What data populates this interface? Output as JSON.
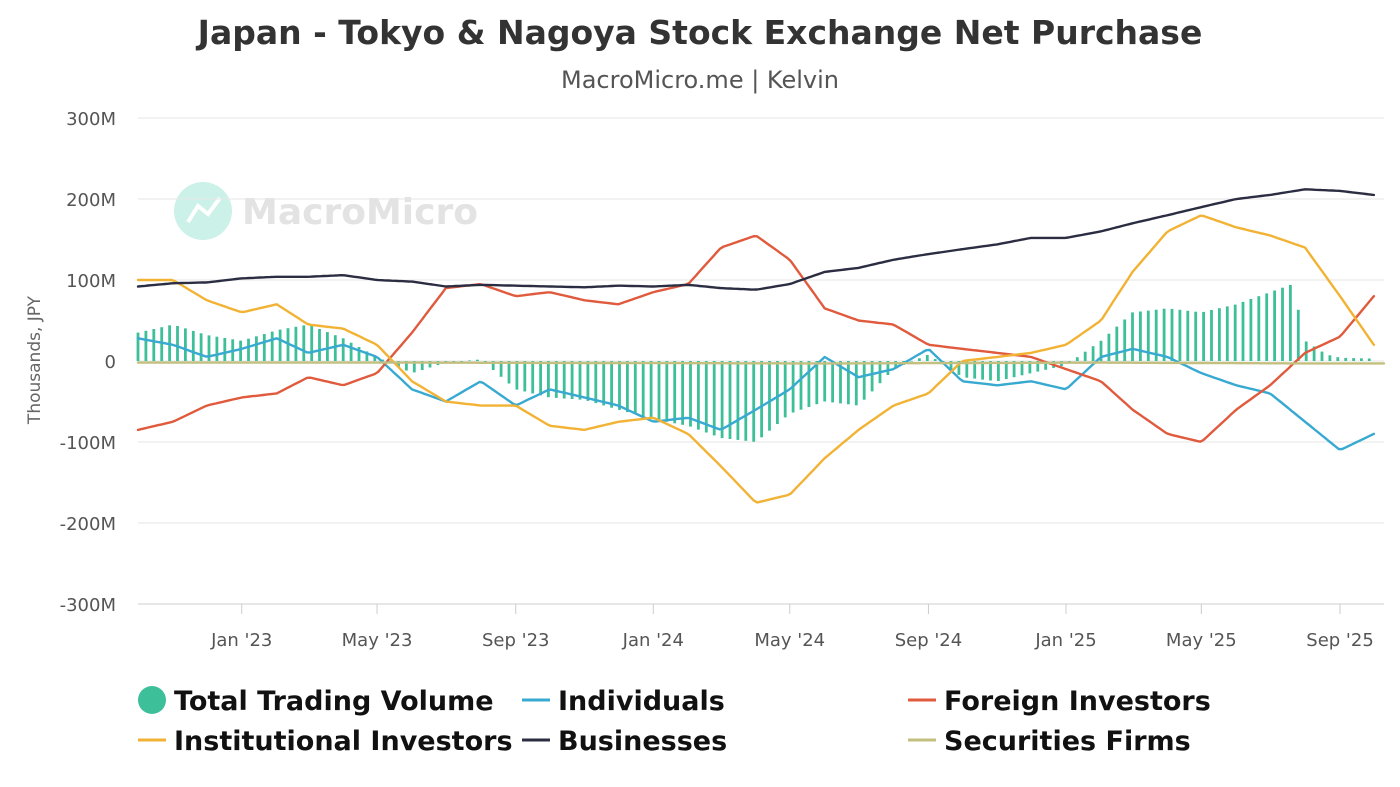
{
  "chart_data": {
    "type": "line",
    "title": "Japan - Tokyo & Nagoya Stock Exchange Net Purchase",
    "subtitle": "MacroMicro.me | Kelvin",
    "watermark": "MacroMicro",
    "ylabel": "Thousands, JPY",
    "ylim": [
      -300,
      300
    ],
    "y_ticks": [
      {
        "value": 300,
        "label": "300M"
      },
      {
        "value": 200,
        "label": "200M"
      },
      {
        "value": 100,
        "label": "100M"
      },
      {
        "value": 0,
        "label": "0"
      },
      {
        "value": -100,
        "label": "-100M"
      },
      {
        "value": -200,
        "label": "-200M"
      },
      {
        "value": -300,
        "label": "-300M"
      }
    ],
    "x_range": [
      "2022-10-01",
      "2025-10-10"
    ],
    "x_ticks": [
      {
        "date": "2023-01-01",
        "label": "Jan '23"
      },
      {
        "date": "2023-05-01",
        "label": "May '23"
      },
      {
        "date": "2023-09-01",
        "label": "Sep '23"
      },
      {
        "date": "2024-01-01",
        "label": "Jan '24"
      },
      {
        "date": "2024-05-01",
        "label": "May '24"
      },
      {
        "date": "2024-09-01",
        "label": "Sep '24"
      },
      {
        "date": "2025-01-01",
        "label": "Jan '25"
      },
      {
        "date": "2025-05-01",
        "label": "May '25"
      },
      {
        "date": "2025-09-01",
        "label": "Sep '25"
      }
    ],
    "series": [
      {
        "name": "Total Trading Volume",
        "kind": "bar",
        "color": "#3dbf99",
        "data": [
          [
            "2022-10-01",
            35
          ],
          [
            "2022-11-01",
            45
          ],
          [
            "2022-12-01",
            32
          ],
          [
            "2023-01-01",
            25
          ],
          [
            "2023-02-01",
            38
          ],
          [
            "2023-03-01",
            45
          ],
          [
            "2023-04-01",
            28
          ],
          [
            "2023-05-01",
            5
          ],
          [
            "2023-06-01",
            -15
          ],
          [
            "2023-07-01",
            -2
          ],
          [
            "2023-08-01",
            2
          ],
          [
            "2023-09-01",
            -35
          ],
          [
            "2023-10-01",
            -45
          ],
          [
            "2023-11-01",
            -48
          ],
          [
            "2023-12-01",
            -60
          ],
          [
            "2024-01-01",
            -72
          ],
          [
            "2024-02-01",
            -80
          ],
          [
            "2024-03-01",
            -95
          ],
          [
            "2024-04-01",
            -100
          ],
          [
            "2024-05-01",
            -65
          ],
          [
            "2024-06-01",
            -50
          ],
          [
            "2024-07-01",
            -55
          ],
          [
            "2024-08-01",
            -10
          ],
          [
            "2024-09-01",
            8
          ],
          [
            "2024-10-01",
            -20
          ],
          [
            "2024-11-01",
            -25
          ],
          [
            "2024-12-01",
            -15
          ],
          [
            "2025-01-01",
            -5
          ],
          [
            "2025-02-01",
            25
          ],
          [
            "2025-03-01",
            60
          ],
          [
            "2025-04-01",
            65
          ],
          [
            "2025-05-01",
            60
          ],
          [
            "2025-06-01",
            70
          ],
          [
            "2025-07-01",
            85
          ],
          [
            "2025-07-21",
            95
          ],
          [
            "2025-08-01",
            25
          ],
          [
            "2025-08-20",
            8
          ],
          [
            "2025-09-01",
            4
          ],
          [
            "2025-10-01",
            3
          ]
        ]
      },
      {
        "name": "Individuals",
        "kind": "line",
        "color": "#38a9d1",
        "data": [
          [
            "2022-10-01",
            28
          ],
          [
            "2022-11-01",
            20
          ],
          [
            "2022-12-01",
            5
          ],
          [
            "2023-01-01",
            15
          ],
          [
            "2023-02-01",
            28
          ],
          [
            "2023-03-01",
            10
          ],
          [
            "2023-04-01",
            20
          ],
          [
            "2023-05-01",
            5
          ],
          [
            "2023-06-01",
            -35
          ],
          [
            "2023-07-01",
            -50
          ],
          [
            "2023-08-01",
            -25
          ],
          [
            "2023-09-01",
            -55
          ],
          [
            "2023-10-01",
            -35
          ],
          [
            "2023-11-01",
            -45
          ],
          [
            "2023-12-01",
            -55
          ],
          [
            "2024-01-01",
            -75
          ],
          [
            "2024-02-01",
            -70
          ],
          [
            "2024-03-01",
            -85
          ],
          [
            "2024-04-01",
            -60
          ],
          [
            "2024-05-01",
            -35
          ],
          [
            "2024-06-01",
            5
          ],
          [
            "2024-07-01",
            -20
          ],
          [
            "2024-08-01",
            -10
          ],
          [
            "2024-09-01",
            15
          ],
          [
            "2024-10-01",
            -25
          ],
          [
            "2024-11-01",
            -30
          ],
          [
            "2024-12-01",
            -25
          ],
          [
            "2025-01-01",
            -35
          ],
          [
            "2025-02-01",
            5
          ],
          [
            "2025-03-01",
            15
          ],
          [
            "2025-04-01",
            5
          ],
          [
            "2025-05-01",
            -15
          ],
          [
            "2025-06-01",
            -30
          ],
          [
            "2025-07-01",
            -40
          ],
          [
            "2025-08-01",
            -75
          ],
          [
            "2025-09-01",
            -110
          ],
          [
            "2025-10-01",
            -90
          ]
        ]
      },
      {
        "name": "Foreign Investors",
        "kind": "line",
        "color": "#e05a3d",
        "data": [
          [
            "2022-10-01",
            -85
          ],
          [
            "2022-11-01",
            -75
          ],
          [
            "2022-12-01",
            -55
          ],
          [
            "2023-01-01",
            -45
          ],
          [
            "2023-02-01",
            -40
          ],
          [
            "2023-03-01",
            -20
          ],
          [
            "2023-04-01",
            -30
          ],
          [
            "2023-05-01",
            -15
          ],
          [
            "2023-06-01",
            35
          ],
          [
            "2023-07-01",
            90
          ],
          [
            "2023-08-01",
            95
          ],
          [
            "2023-09-01",
            80
          ],
          [
            "2023-10-01",
            85
          ],
          [
            "2023-11-01",
            75
          ],
          [
            "2023-12-01",
            70
          ],
          [
            "2024-01-01",
            85
          ],
          [
            "2024-02-01",
            95
          ],
          [
            "2024-03-01",
            140
          ],
          [
            "2024-04-01",
            155
          ],
          [
            "2024-05-01",
            125
          ],
          [
            "2024-06-01",
            65
          ],
          [
            "2024-07-01",
            50
          ],
          [
            "2024-08-01",
            45
          ],
          [
            "2024-09-01",
            20
          ],
          [
            "2024-10-01",
            15
          ],
          [
            "2024-11-01",
            10
          ],
          [
            "2024-12-01",
            5
          ],
          [
            "2025-01-01",
            -10
          ],
          [
            "2025-02-01",
            -25
          ],
          [
            "2025-03-01",
            -60
          ],
          [
            "2025-04-01",
            -90
          ],
          [
            "2025-05-01",
            -100
          ],
          [
            "2025-06-01",
            -60
          ],
          [
            "2025-07-01",
            -30
          ],
          [
            "2025-08-01",
            10
          ],
          [
            "2025-09-01",
            30
          ],
          [
            "2025-10-01",
            80
          ]
        ]
      },
      {
        "name": "Institutional Investors",
        "kind": "line",
        "color": "#f2b234",
        "data": [
          [
            "2022-10-01",
            100
          ],
          [
            "2022-11-01",
            100
          ],
          [
            "2022-12-01",
            75
          ],
          [
            "2023-01-01",
            60
          ],
          [
            "2023-02-01",
            70
          ],
          [
            "2023-03-01",
            45
          ],
          [
            "2023-04-01",
            40
          ],
          [
            "2023-05-01",
            20
          ],
          [
            "2023-06-01",
            -25
          ],
          [
            "2023-07-01",
            -50
          ],
          [
            "2023-08-01",
            -55
          ],
          [
            "2023-09-01",
            -55
          ],
          [
            "2023-10-01",
            -80
          ],
          [
            "2023-11-01",
            -85
          ],
          [
            "2023-12-01",
            -75
          ],
          [
            "2024-01-01",
            -70
          ],
          [
            "2024-02-01",
            -90
          ],
          [
            "2024-03-01",
            -130
          ],
          [
            "2024-04-01",
            -175
          ],
          [
            "2024-05-01",
            -165
          ],
          [
            "2024-06-01",
            -120
          ],
          [
            "2024-07-01",
            -85
          ],
          [
            "2024-08-01",
            -55
          ],
          [
            "2024-09-01",
            -40
          ],
          [
            "2024-10-01",
            0
          ],
          [
            "2024-11-01",
            5
          ],
          [
            "2024-12-01",
            10
          ],
          [
            "2025-01-01",
            20
          ],
          [
            "2025-02-01",
            50
          ],
          [
            "2025-03-01",
            110
          ],
          [
            "2025-04-01",
            160
          ],
          [
            "2025-05-01",
            180
          ],
          [
            "2025-06-01",
            165
          ],
          [
            "2025-07-01",
            155
          ],
          [
            "2025-08-01",
            140
          ],
          [
            "2025-09-01",
            80
          ],
          [
            "2025-10-01",
            20
          ]
        ]
      },
      {
        "name": "Businesses",
        "kind": "line",
        "color": "#2b2d42",
        "data": [
          [
            "2022-10-01",
            92
          ],
          [
            "2022-11-01",
            96
          ],
          [
            "2022-12-01",
            97
          ],
          [
            "2023-01-01",
            102
          ],
          [
            "2023-02-01",
            104
          ],
          [
            "2023-03-01",
            104
          ],
          [
            "2023-04-01",
            106
          ],
          [
            "2023-05-01",
            100
          ],
          [
            "2023-06-01",
            98
          ],
          [
            "2023-07-01",
            92
          ],
          [
            "2023-08-01",
            94
          ],
          [
            "2023-09-01",
            93
          ],
          [
            "2023-10-01",
            92
          ],
          [
            "2023-11-01",
            91
          ],
          [
            "2023-12-01",
            93
          ],
          [
            "2024-01-01",
            92
          ],
          [
            "2024-02-01",
            94
          ],
          [
            "2024-03-01",
            90
          ],
          [
            "2024-04-01",
            88
          ],
          [
            "2024-05-01",
            95
          ],
          [
            "2024-06-01",
            110
          ],
          [
            "2024-07-01",
            115
          ],
          [
            "2024-08-01",
            125
          ],
          [
            "2024-09-01",
            132
          ],
          [
            "2024-10-01",
            138
          ],
          [
            "2024-11-01",
            144
          ],
          [
            "2024-12-01",
            152
          ],
          [
            "2025-01-01",
            152
          ],
          [
            "2025-02-01",
            160
          ],
          [
            "2025-03-01",
            170
          ],
          [
            "2025-04-01",
            180
          ],
          [
            "2025-05-01",
            190
          ],
          [
            "2025-06-01",
            200
          ],
          [
            "2025-07-01",
            205
          ],
          [
            "2025-08-01",
            212
          ],
          [
            "2025-09-01",
            210
          ],
          [
            "2025-10-01",
            205
          ]
        ]
      },
      {
        "name": "Securities Firms",
        "kind": "line",
        "color": "#c3bf7f",
        "data": [
          [
            "2022-10-01",
            -2
          ],
          [
            "2023-06-01",
            -2
          ],
          [
            "2024-06-01",
            -3
          ],
          [
            "2025-02-01",
            -2
          ],
          [
            "2025-08-01",
            -3
          ],
          [
            "2025-10-10",
            -3
          ]
        ]
      }
    ]
  }
}
